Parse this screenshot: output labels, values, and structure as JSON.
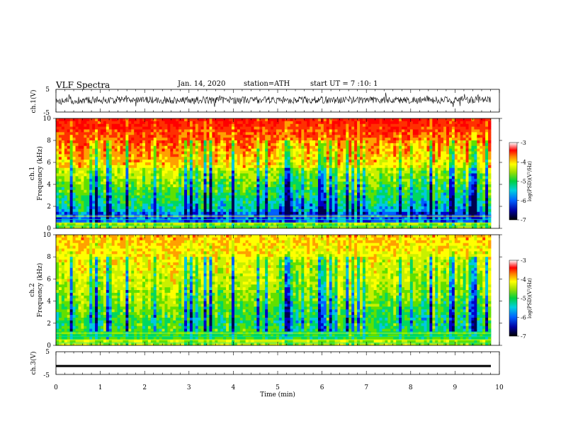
{
  "header": {
    "title": "VLF Spectra",
    "date": "Jan. 14, 2020",
    "station": "station=ATH",
    "start": "start UT = 7 :10: 1"
  },
  "colors": {
    "waveform": "#000000",
    "colormap": [
      "#000040",
      "#0000c8",
      "#0070ff",
      "#00d0d0",
      "#00e060",
      "#80e000",
      "#ffff00",
      "#ffa000",
      "#ff2000",
      "#ffffff"
    ]
  },
  "chart_data": [
    {
      "type": "line",
      "panel": "ch1-waveform",
      "ylabel": "ch.1(V)",
      "ylim": [
        -5,
        5
      ],
      "yticks": [
        "5",
        "-5"
      ],
      "x_range_min": [
        0,
        9.8
      ],
      "description_level": "noisy oscillation mostly between about -1.5 and 2.5 V"
    },
    {
      "type": "heatmap",
      "panel": "ch1-spectrogram",
      "ylabel": "ch.1\nFrequency (kHz)",
      "ylim": [
        0,
        10
      ],
      "yticks": [
        "0",
        "2",
        "4",
        "6",
        "8",
        "10"
      ],
      "colorbar": {
        "label": "log(PSD)(V²/Hz)",
        "range": [
          -7,
          -3
        ],
        "ticks": [
          "-3",
          "-4",
          "-5",
          "-6",
          "-7"
        ]
      }
    },
    {
      "type": "heatmap",
      "panel": "ch2-spectrogram",
      "ylabel": "ch.2\nFrequency (kHz)",
      "ylim": [
        0,
        10
      ],
      "yticks": [
        "0",
        "2",
        "4",
        "6",
        "8",
        "10"
      ],
      "colorbar": {
        "label": "log(PSD)(V²/Hz)",
        "range": [
          -7,
          -3
        ],
        "ticks": [
          "-3",
          "-4",
          "-5",
          "-6",
          "-7"
        ]
      }
    },
    {
      "type": "line",
      "panel": "ch3-waveform",
      "ylabel": "ch.3(V)",
      "ylim": [
        -5,
        5
      ],
      "yticks": [
        "5",
        "-5"
      ],
      "level": -1.3
    }
  ],
  "xaxis": {
    "label": "Time (min)",
    "range": [
      0,
      10
    ],
    "ticks": [
      "0",
      "1",
      "2",
      "3",
      "4",
      "5",
      "6",
      "7",
      "8",
      "9",
      "10"
    ]
  },
  "labels": {
    "ch1_waveform": "ch.1(V)",
    "ch1_spec_1": "ch.1",
    "ch1_spec_2": "Frequency (kHz)",
    "ch2_spec_1": "ch.2",
    "ch2_spec_2": "Frequency (kHz)",
    "ch3_waveform": "ch.3(V)",
    "cbar": "log(PSD)(V²/Hz)"
  }
}
